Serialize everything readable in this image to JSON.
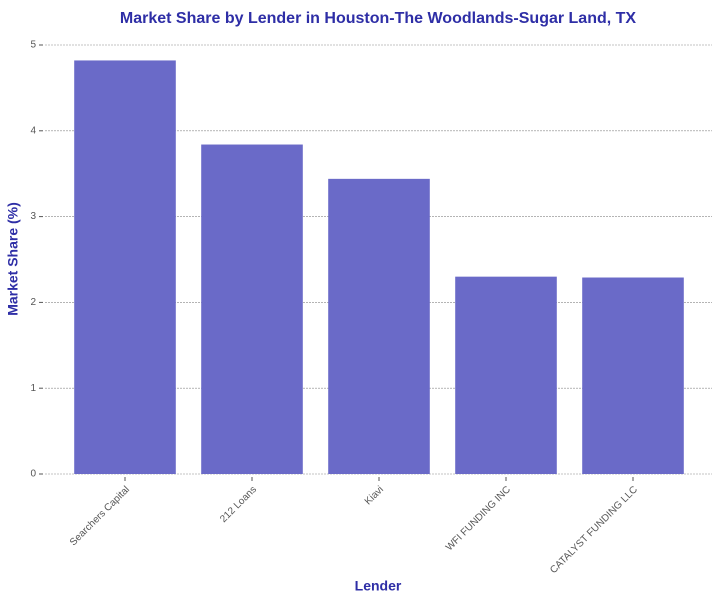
{
  "chart_data": {
    "type": "bar",
    "title": "Market Share by Lender in Houston-The Woodlands-Sugar Land, TX",
    "x_label": "Lender",
    "y_label": "Market Share (%)",
    "categories": [
      "Searchers Capital",
      "212 Loans",
      "Kiavi",
      "WFI FUNDING INC",
      "CATALYST FUNDING LLC"
    ],
    "values": [
      4.82,
      3.84,
      3.44,
      2.3,
      2.29
    ],
    "color": "#6a6ac8",
    "ylim": [
      0,
      5
    ],
    "yticks": [
      0,
      1,
      2,
      3,
      4,
      5
    ],
    "grid": true
  }
}
